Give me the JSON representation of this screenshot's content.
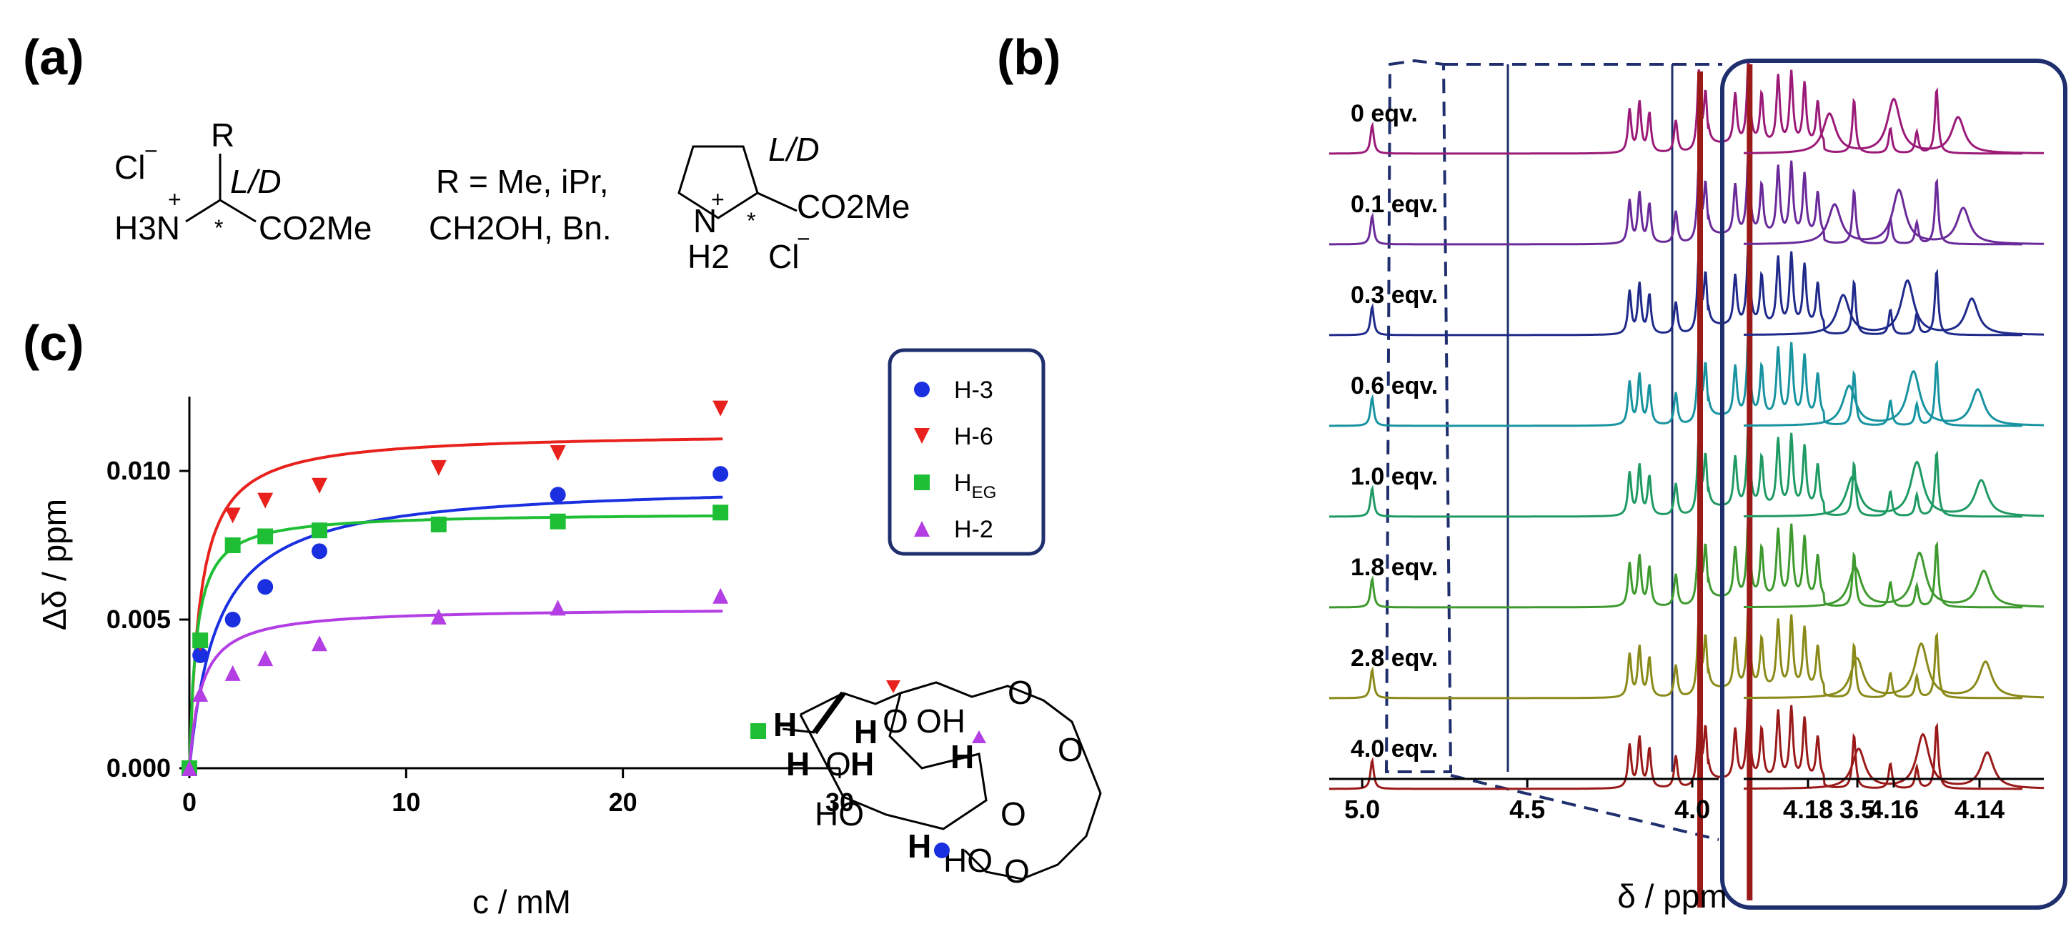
{
  "panels": {
    "a": "(a)",
    "b": "(b)",
    "c": "(c)"
  },
  "scheme_a": {
    "amino_acid": {
      "cl": "Cl",
      "minus": "−",
      "plus": "+",
      "r": "R",
      "ld": "L/D",
      "h3n": "H3N",
      "star": "*",
      "co2me": "CO2Me"
    },
    "r_def_line1": "R = Me, iPr,",
    "r_def_line2": "CH2OH, Bn.",
    "proline": {
      "ld": "L/D",
      "plus": "+",
      "n": "N",
      "h2": "H2",
      "star": "*",
      "co2me": "CO2Me",
      "cl": "Cl",
      "minus": "−"
    }
  },
  "colors": {
    "H3": "#1a2fe0",
    "H6": "#e8211c",
    "HEG": "#1fbf35",
    "H2": "#b33ee3",
    "frame": "#1f2f6e"
  },
  "chart_data": [
    {
      "type": "scatter",
      "title": "",
      "xlabel": "c / mM",
      "ylabel": "Δδ / ppm",
      "xlim": [
        0,
        30
      ],
      "ylim": [
        0,
        0.0125
      ],
      "xticks": [
        "0",
        "10",
        "20",
        "30"
      ],
      "yticks": [
        "0.000",
        "0.005",
        "0.010"
      ],
      "legend_position": "top-right",
      "series": [
        {
          "name": "H-3",
          "key": "H3",
          "marker": "circle",
          "x": [
            0,
            0.5,
            2.0,
            3.5,
            6.0,
            11.5,
            17.0,
            24.5
          ],
          "y": [
            0.0,
            0.0038,
            0.005,
            0.0061,
            0.0073,
            0.0082,
            0.0092,
            0.0099
          ],
          "fit": {
            "max": 0.0096,
            "k": 1.3
          }
        },
        {
          "name": "H-6",
          "key": "H6",
          "marker": "triangle-down",
          "x": [
            0,
            0.5,
            2.0,
            3.5,
            6.0,
            11.5,
            17.0,
            24.5
          ],
          "y": [
            0.0,
            0.0042,
            0.0085,
            0.009,
            0.0095,
            0.0101,
            0.0106,
            0.0121
          ],
          "fit": {
            "max": 0.0113,
            "k": 0.5
          }
        },
        {
          "name": "HEG",
          "key": "HEG",
          "marker": "square",
          "x": [
            0,
            0.5,
            2.0,
            3.5,
            6.0,
            11.5,
            17.0,
            24.5
          ],
          "y": [
            0.0,
            0.0043,
            0.0075,
            0.0078,
            0.008,
            0.0082,
            0.0083,
            0.0086
          ],
          "fit": {
            "max": 0.0086,
            "k": 0.32
          }
        },
        {
          "name": "H-2",
          "key": "H2",
          "marker": "triangle-up",
          "x": [
            0,
            0.5,
            2.0,
            3.5,
            6.0,
            11.5,
            17.0,
            24.5
          ],
          "y": [
            0.0,
            0.0025,
            0.0032,
            0.0037,
            0.0042,
            0.0051,
            0.0054,
            0.0058
          ],
          "fit": {
            "max": 0.0054,
            "k": 0.55
          }
        }
      ]
    },
    {
      "type": "line",
      "title": "",
      "xlabel": "δ / ppm",
      "xlim": [
        5.1,
        3.0
      ],
      "xticks": [
        "5.0",
        "4.5",
        "4.0",
        "3.5"
      ],
      "inset_xticks": [
        "4.18",
        "4.16",
        "4.14"
      ],
      "series": [
        {
          "name": "0 eqv.",
          "color": "#9b1a78",
          "shift": 0.0
        },
        {
          "name": "0.1 eqv.",
          "color": "#6a2a9a",
          "shift": 0.12
        },
        {
          "name": "0.3 eqv.",
          "color": "#1f2a8a",
          "shift": 0.32
        },
        {
          "name": "0.6 eqv.",
          "color": "#1893a0",
          "shift": 0.46
        },
        {
          "name": "1.0 eqv.",
          "color": "#1f9a63",
          "shift": 0.54
        },
        {
          "name": "1.8 eqv.",
          "color": "#3e9a2e",
          "shift": 0.6
        },
        {
          "name": "2.8 eqv.",
          "color": "#8a8a1a",
          "shift": 0.64
        },
        {
          "name": "4.0 eqv.",
          "color": "#9a1a1a",
          "shift": 0.68
        }
      ]
    }
  ],
  "structure_c": {
    "h": "H",
    "o": "O",
    "oh": "OH",
    "ho": "HO"
  },
  "legend_title_eg": {
    "main": "H",
    "sub": "EG"
  }
}
